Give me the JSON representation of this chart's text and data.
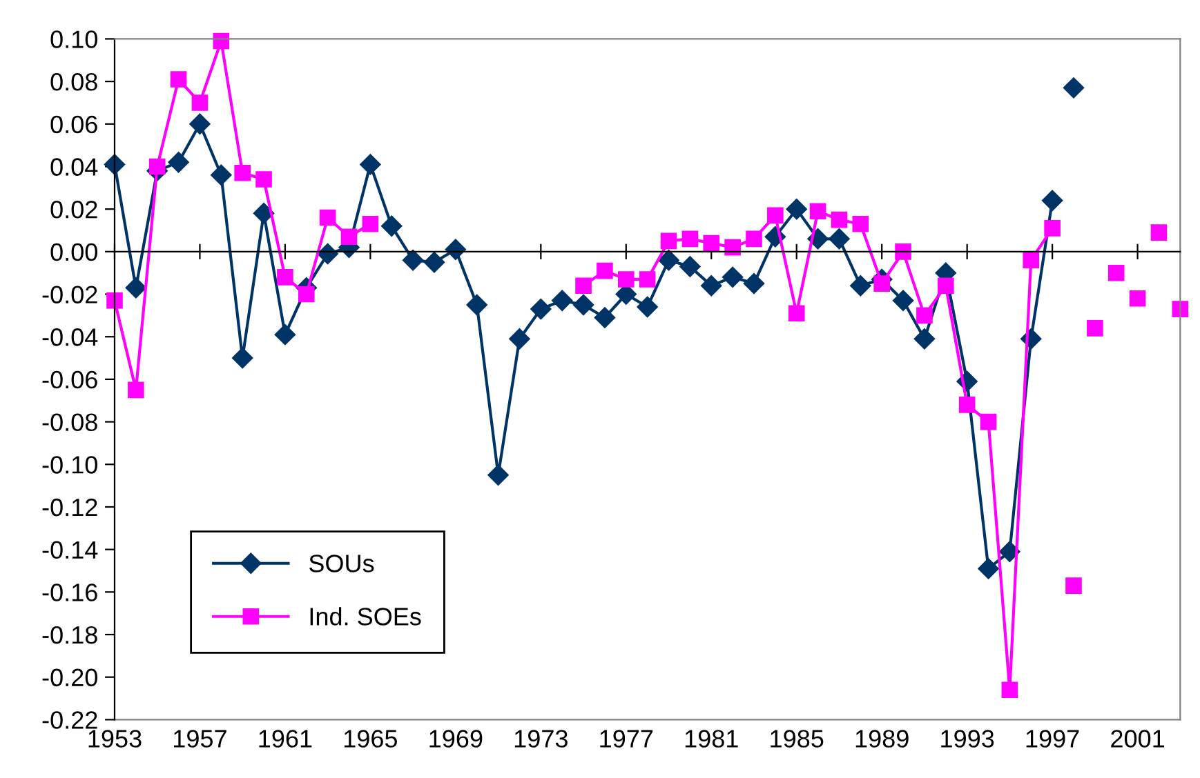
{
  "chart_data": {
    "type": "line",
    "xlim": [
      1953,
      2003
    ],
    "xticks": [
      1953,
      1957,
      1961,
      1965,
      1969,
      1973,
      1977,
      1981,
      1985,
      1989,
      1993,
      1997,
      2001
    ],
    "ylim": [
      -0.22,
      0.1
    ],
    "yticks": [
      {
        "value": 0.1,
        "label": "0.10"
      },
      {
        "value": 0.08,
        "label": "0.08"
      },
      {
        "value": 0.06,
        "label": "0.06"
      },
      {
        "value": 0.04,
        "label": "0.04"
      },
      {
        "value": 0.02,
        "label": "0.02"
      },
      {
        "value": 0,
        "label": "0.00"
      },
      {
        "value": -0.02,
        "label": "-0.02"
      },
      {
        "value": -0.04,
        "label": "-0.04"
      },
      {
        "value": -0.06,
        "label": "-0.06"
      },
      {
        "value": -0.08,
        "label": "-0.08"
      },
      {
        "value": -0.1,
        "label": "-0.10"
      },
      {
        "value": -0.12,
        "label": "-0.12"
      },
      {
        "value": -0.14,
        "label": "-0.14"
      },
      {
        "value": -0.16,
        "label": "-0.16"
      },
      {
        "value": -0.18,
        "label": "-0.18"
      },
      {
        "value": -0.2,
        "label": "-0.20"
      },
      {
        "value": -0.22,
        "label": "-0.22"
      }
    ],
    "legend": "bottom left",
    "series": [
      {
        "name": "SOUs",
        "color": "#003366",
        "marker": "diamond",
        "x": [
          1953,
          1954,
          1955,
          1956,
          1957,
          1958,
          1959,
          1960,
          1961,
          1962,
          1963,
          1964,
          1965,
          1966,
          1967,
          1968,
          1969,
          1970,
          1971,
          1972,
          1973,
          1974,
          1975,
          1976,
          1977,
          1978,
          1979,
          1980,
          1981,
          1982,
          1983,
          1984,
          1985,
          1986,
          1987,
          1988,
          1989,
          1990,
          1991,
          1992,
          1993,
          1994,
          1995,
          1996,
          1997
        ],
        "values": [
          0.041,
          -0.017,
          0.038,
          0.042,
          0.06,
          0.036,
          -0.05,
          0.018,
          -0.039,
          -0.017,
          -0.001,
          0.002,
          0.041,
          0.012,
          -0.004,
          -0.005,
          0.001,
          -0.025,
          -0.105,
          -0.041,
          -0.027,
          -0.023,
          -0.025,
          -0.031,
          -0.02,
          -0.026,
          -0.004,
          -0.007,
          -0.016,
          -0.012,
          -0.015,
          0.007,
          0.02,
          0.006,
          0.006,
          -0.016,
          -0.013,
          -0.023,
          -0.041,
          -0.01,
          -0.061,
          -0.149,
          -0.141,
          -0.041,
          0.024
        ]
      },
      {
        "name": "Ind. SOEs",
        "color": "#ff00ff",
        "marker": "square",
        "x": [
          1953,
          1954,
          1955,
          1956,
          1957,
          1958,
          1959,
          1960,
          1961,
          1962,
          1963,
          1964,
          1965,
          1966,
          1967,
          1968,
          1969,
          1970,
          1971,
          1972,
          1973,
          1974,
          1975,
          1976,
          1977,
          1978,
          1979,
          1980,
          1981,
          1982,
          1983,
          1984,
          1985,
          1986,
          1987,
          1988,
          1989,
          1990,
          1991,
          1992,
          1993,
          1994,
          1995,
          1996,
          1997
        ],
        "values": [
          -0.023,
          -0.065,
          0.04,
          0.081,
          0.07,
          0.099,
          0.037,
          0.034,
          -0.012,
          -0.02,
          0.016,
          0.007,
          0.013,
          null,
          null,
          null,
          null,
          null,
          null,
          null,
          null,
          null,
          -0.016,
          -0.009,
          -0.013,
          -0.013,
          0.005,
          0.006,
          0.004,
          0.002,
          0.006,
          0.017,
          -0.029,
          0.019,
          0.015,
          0.013,
          -0.015,
          0.0,
          -0.03,
          -0.016,
          -0.072,
          -0.08,
          -0.206,
          -0.004,
          0.011
        ]
      },
      {
        "type": "scatter",
        "color": "#003366",
        "marker": "diamond",
        "x": [
          1998
        ],
        "values": [
          0.077
        ]
      },
      {
        "type": "scatter",
        "color": "#ff00ff",
        "marker": "square",
        "x": [
          1998,
          1999,
          2000,
          2001,
          2002,
          2003
        ],
        "values": [
          -0.157,
          -0.036,
          -0.01,
          -0.022,
          0.009,
          -0.027
        ]
      }
    ]
  }
}
